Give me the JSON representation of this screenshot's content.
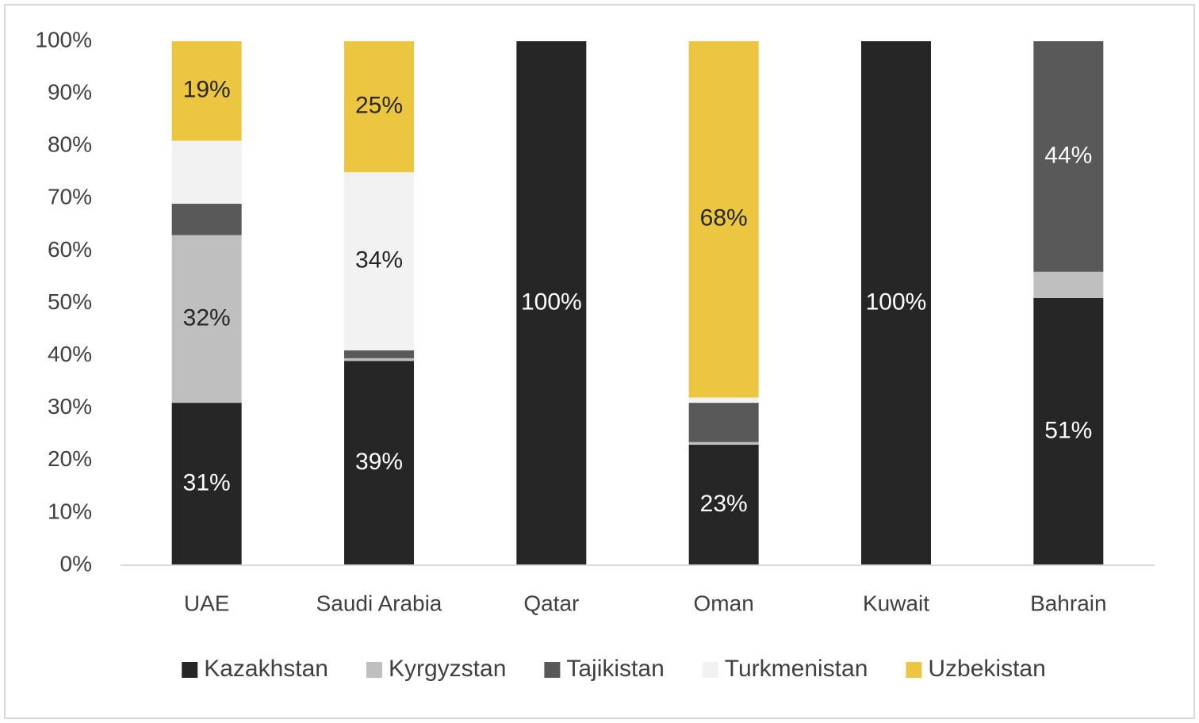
{
  "chart_data": {
    "type": "stacked_bar",
    "categories": [
      "UAE",
      "Saudi Arabia",
      "Qatar",
      "Oman",
      "Kuwait",
      "Bahrain"
    ],
    "series": [
      {
        "name": "Kazakhstan",
        "color": "#262626",
        "values": [
          31,
          39,
          100,
          23,
          100,
          51
        ],
        "value_labels": [
          "31%",
          "39%",
          "100%",
          "23%",
          "100%",
          "51%"
        ]
      },
      {
        "name": "Kyrgyzstan",
        "color": "#bfbfbf",
        "values": [
          32,
          0.5,
          0,
          0.5,
          0,
          5
        ],
        "value_labels": [
          "32%",
          null,
          null,
          null,
          null,
          null
        ]
      },
      {
        "name": "Tajikistan",
        "color": "#595959",
        "values": [
          6,
          1.5,
          0,
          7.5,
          0,
          44
        ],
        "value_labels": [
          null,
          null,
          null,
          null,
          null,
          "44%"
        ]
      },
      {
        "name": "Turkmenistan",
        "color": "#f2f2f2",
        "values": [
          12,
          34,
          0,
          1,
          0,
          0
        ],
        "value_labels": [
          null,
          "34%",
          null,
          null,
          null,
          null
        ]
      },
      {
        "name": "Uzbekistan",
        "color": "#ecc640",
        "values": [
          19,
          25,
          0,
          68,
          0,
          0
        ],
        "value_labels": [
          "19%",
          "25%",
          null,
          "68%",
          null,
          null
        ]
      }
    ],
    "ylim": [
      0,
      100
    ],
    "yticks": [
      {
        "value": 0,
        "label": "0%"
      },
      {
        "value": 10,
        "label": "10%"
      },
      {
        "value": 20,
        "label": "20%"
      },
      {
        "value": 30,
        "label": "30%"
      },
      {
        "value": 40,
        "label": "40%"
      },
      {
        "value": 50,
        "label": "50%"
      },
      {
        "value": 60,
        "label": "60%"
      },
      {
        "value": 70,
        "label": "70%"
      },
      {
        "value": 80,
        "label": "80%"
      },
      {
        "value": 90,
        "label": "90%"
      },
      {
        "value": 100,
        "label": "100%"
      }
    ],
    "grid": false,
    "legend": "bottom"
  }
}
